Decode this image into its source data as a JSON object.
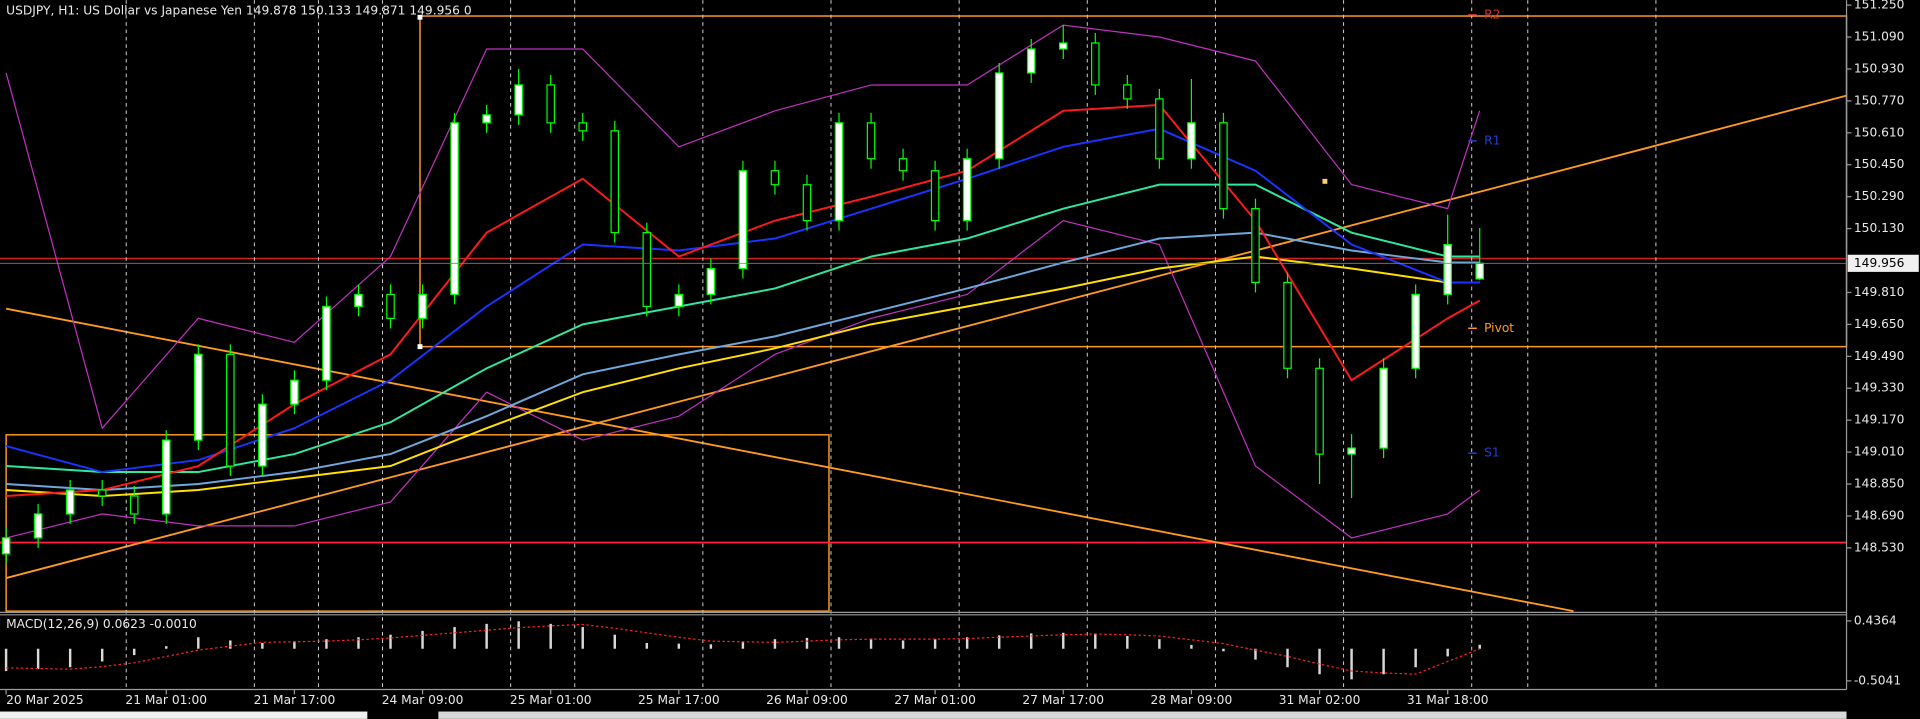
{
  "chart_data": {
    "type": "candlestick",
    "title": "USDJPY, H1:  US Dollar vs Japanese Yen  149.878 150.133 149.871 149.956  0",
    "xlim": [
      -0.76,
      229.8
    ],
    "ylim": [
      148.213,
      151.275
    ],
    "xticks": [
      {
        "value": 0,
        "label": "20 Mar 2025"
      },
      {
        "value": 20,
        "label": "21 Mar 01:00"
      },
      {
        "value": 36,
        "label": "21 Mar 17:00"
      },
      {
        "value": 52,
        "label": "24 Mar 09:00"
      },
      {
        "value": 68,
        "label": "25 Mar 01:00"
      },
      {
        "value": 84,
        "label": "25 Mar 17:00"
      },
      {
        "value": 100,
        "label": "26 Mar 09:00"
      },
      {
        "value": 116,
        "label": "27 Mar 01:00"
      },
      {
        "value": 132,
        "label": "27 Mar 17:00"
      },
      {
        "value": 148,
        "label": "28 Mar 09:00"
      },
      {
        "value": 164,
        "label": "31 Mar 02:00"
      },
      {
        "value": 180,
        "label": "31 Mar 18:00"
      }
    ],
    "xgrid": [
      15,
      31,
      39,
      47,
      63,
      71,
      87,
      103,
      119,
      135,
      151,
      167,
      183,
      190,
      206
    ],
    "yticks": [
      {
        "value": 151.25,
        "label": "151.250"
      },
      {
        "value": 151.09,
        "label": "151.090"
      },
      {
        "value": 150.93,
        "label": "150.930"
      },
      {
        "value": 150.77,
        "label": "150.770"
      },
      {
        "value": 150.61,
        "label": "150.610"
      },
      {
        "value": 150.45,
        "label": "150.450"
      },
      {
        "value": 150.29,
        "label": "150.290"
      },
      {
        "value": 150.13,
        "label": "150.130"
      },
      {
        "value": 149.81,
        "label": "149.810"
      },
      {
        "value": 149.65,
        "label": "149.650"
      },
      {
        "value": 149.49,
        "label": "149.490"
      },
      {
        "value": 149.33,
        "label": "149.330"
      },
      {
        "value": 149.17,
        "label": "149.170"
      },
      {
        "value": 149.01,
        "label": "149.010"
      },
      {
        "value": 148.85,
        "label": "148.850"
      },
      {
        "value": 148.69,
        "label": "148.690"
      },
      {
        "value": 148.53,
        "label": "148.530"
      },
      {
        "value": {
          "v": 0
        },
        "label": ""
      }
    ],
    "x": [
      0,
      4,
      8,
      12,
      16,
      20,
      24,
      28,
      32,
      36,
      40,
      44,
      48,
      52,
      56,
      60,
      64,
      68,
      72,
      76,
      80,
      84,
      88,
      92,
      96,
      100,
      104,
      108,
      112,
      116,
      120,
      124,
      128,
      132,
      136,
      140,
      144,
      148,
      152,
      156,
      160,
      164,
      168,
      172,
      176,
      180,
      184
    ],
    "open": [
      148.5,
      148.58,
      148.7,
      148.82,
      148.79,
      148.7,
      149.07,
      149.5,
      148.94,
      149.25,
      149.37,
      149.74,
      149.8,
      149.68,
      149.8,
      150.66,
      150.7,
      150.85,
      150.66,
      150.62,
      150.11,
      149.74,
      149.8,
      149.93,
      150.42,
      150.35,
      150.17,
      150.66,
      150.48,
      150.42,
      150.17,
      150.48,
      150.91,
      151.03,
      151.06,
      150.85,
      150.78,
      150.48,
      150.66,
      150.23,
      149.86,
      149.43,
      149.0,
      149.03,
      149.43,
      149.8,
      149.878
    ],
    "high": [
      148.63,
      148.75,
      148.87,
      148.87,
      148.84,
      149.12,
      149.55,
      149.55,
      149.3,
      149.42,
      149.79,
      149.85,
      149.85,
      149.85,
      150.71,
      150.75,
      150.93,
      150.9,
      150.71,
      150.67,
      150.16,
      149.85,
      149.98,
      150.47,
      150.47,
      150.4,
      150.71,
      150.71,
      150.53,
      150.47,
      150.53,
      150.96,
      151.08,
      151.15,
      151.11,
      150.9,
      150.83,
      150.88,
      150.71,
      150.28,
      149.91,
      149.48,
      149.1,
      149.48,
      149.85,
      150.2,
      150.133
    ],
    "low": [
      148.45,
      148.53,
      148.65,
      148.74,
      148.65,
      148.65,
      149.02,
      148.89,
      148.89,
      149.2,
      149.32,
      149.69,
      149.63,
      149.63,
      149.75,
      150.61,
      150.65,
      150.61,
      150.57,
      150.06,
      149.69,
      149.69,
      149.75,
      149.88,
      150.3,
      150.12,
      150.12,
      150.43,
      150.37,
      150.12,
      150.12,
      150.43,
      150.86,
      150.98,
      150.8,
      150.73,
      150.43,
      150.43,
      150.18,
      149.81,
      149.38,
      148.85,
      148.78,
      148.98,
      149.38,
      149.75,
      149.871
    ],
    "close": [
      148.58,
      148.7,
      148.82,
      148.79,
      148.7,
      149.07,
      149.5,
      148.94,
      149.25,
      149.37,
      149.74,
      149.8,
      149.68,
      149.8,
      150.66,
      150.7,
      150.85,
      150.66,
      150.62,
      150.11,
      149.74,
      149.8,
      149.93,
      150.42,
      150.35,
      150.17,
      150.66,
      150.48,
      150.42,
      150.17,
      150.48,
      150.91,
      151.03,
      151.06,
      150.85,
      150.78,
      150.48,
      150.66,
      150.23,
      149.86,
      149.43,
      149.0,
      149.03,
      149.43,
      149.8,
      150.05,
      149.956
    ],
    "ma_x": [
      0,
      12,
      24,
      36,
      48,
      60,
      72,
      84,
      96,
      108,
      120,
      132,
      144,
      156,
      168,
      180,
      184
    ],
    "lines": [
      {
        "color": "#c030c0",
        "values": [
          150.91,
          149.13,
          149.68,
          149.56,
          149.99,
          151.03,
          151.03,
          150.54,
          150.72,
          150.85,
          150.85,
          151.15,
          151.09,
          150.97,
          150.35,
          150.23,
          150.72
        ]
      },
      {
        "color": "#c030c0",
        "values": [
          148.58,
          148.7,
          148.64,
          148.64,
          148.76,
          149.31,
          149.07,
          149.19,
          149.5,
          149.68,
          149.8,
          150.17,
          150.05,
          148.94,
          148.58,
          148.7,
          148.82
        ]
      },
      {
        "color": "#ffe000",
        "values": [
          148.82,
          148.79,
          148.82,
          148.88,
          148.94,
          149.13,
          149.31,
          149.43,
          149.53,
          149.65,
          149.74,
          149.83,
          149.93,
          149.99,
          149.93,
          149.86,
          149.86
        ]
      },
      {
        "color": "#6fa8dc",
        "values": [
          148.85,
          148.82,
          148.85,
          148.91,
          149.0,
          149.19,
          149.4,
          149.5,
          149.59,
          149.71,
          149.83,
          149.96,
          150.08,
          150.11,
          150.02,
          149.96,
          149.96
        ]
      },
      {
        "color": "#2ee8a0",
        "values": [
          148.94,
          148.91,
          148.91,
          149.0,
          149.16,
          149.43,
          149.65,
          149.74,
          149.83,
          149.99,
          150.08,
          150.23,
          150.35,
          150.35,
          150.11,
          149.99,
          149.99
        ]
      },
      {
        "color": "#1a33ff",
        "values": [
          149.04,
          148.91,
          148.97,
          149.13,
          149.37,
          149.74,
          150.05,
          150.02,
          150.08,
          150.23,
          150.38,
          150.54,
          150.63,
          150.42,
          150.05,
          149.86,
          149.86
        ]
      },
      {
        "color": "#ff1a1a",
        "values": [
          148.79,
          148.82,
          148.94,
          149.25,
          149.5,
          150.11,
          150.38,
          149.99,
          150.17,
          150.29,
          150.42,
          150.72,
          150.75,
          150.17,
          149.37,
          149.68,
          149.77
        ]
      }
    ],
    "pivot_labels": [
      {
        "text": "R2",
        "color": "#d03030"
      },
      {
        "text": "R1",
        "color": "#2040d0"
      },
      {
        "text": "Pivot",
        "color": "#ff9a20"
      },
      {
        "text": "S1",
        "color": "#2040d0"
      }
    ],
    "macd": {
      "title": "MACD(12,26,9) 0.0623 -0.0010",
      "ylim": [
        -0.639,
        0.532
      ],
      "yticks": [
        0.4364,
        -0.5041
      ],
      "histogram": [
        -0.35,
        -0.32,
        -0.29,
        -0.2,
        -0.1,
        0.04,
        0.18,
        0.13,
        0.09,
        0.12,
        0.15,
        0.18,
        0.22,
        0.28,
        0.34,
        0.39,
        0.43,
        0.39,
        0.34,
        0.22,
        0.09,
        0.08,
        0.07,
        0.11,
        0.15,
        0.17,
        0.18,
        0.16,
        0.13,
        0.15,
        0.18,
        0.21,
        0.24,
        0.25,
        0.24,
        0.2,
        0.15,
        0.06,
        -0.04,
        -0.17,
        -0.29,
        -0.4,
        -0.48,
        -0.4,
        -0.29,
        -0.12,
        0.0623
      ],
      "signal": [
        -0.3,
        -0.31,
        -0.32,
        -0.28,
        -0.22,
        -0.12,
        -0.02,
        0.04,
        0.1,
        0.11,
        0.12,
        0.14,
        0.17,
        0.21,
        0.25,
        0.29,
        0.33,
        0.36,
        0.38,
        0.32,
        0.25,
        0.18,
        0.12,
        0.11,
        0.1,
        0.12,
        0.14,
        0.15,
        0.15,
        0.15,
        0.16,
        0.18,
        0.2,
        0.22,
        0.23,
        0.22,
        0.2,
        0.14,
        0.08,
        -0.02,
        -0.12,
        -0.24,
        -0.35,
        -0.38,
        -0.4,
        -0.2,
        -0.001
      ]
    }
  }
}
